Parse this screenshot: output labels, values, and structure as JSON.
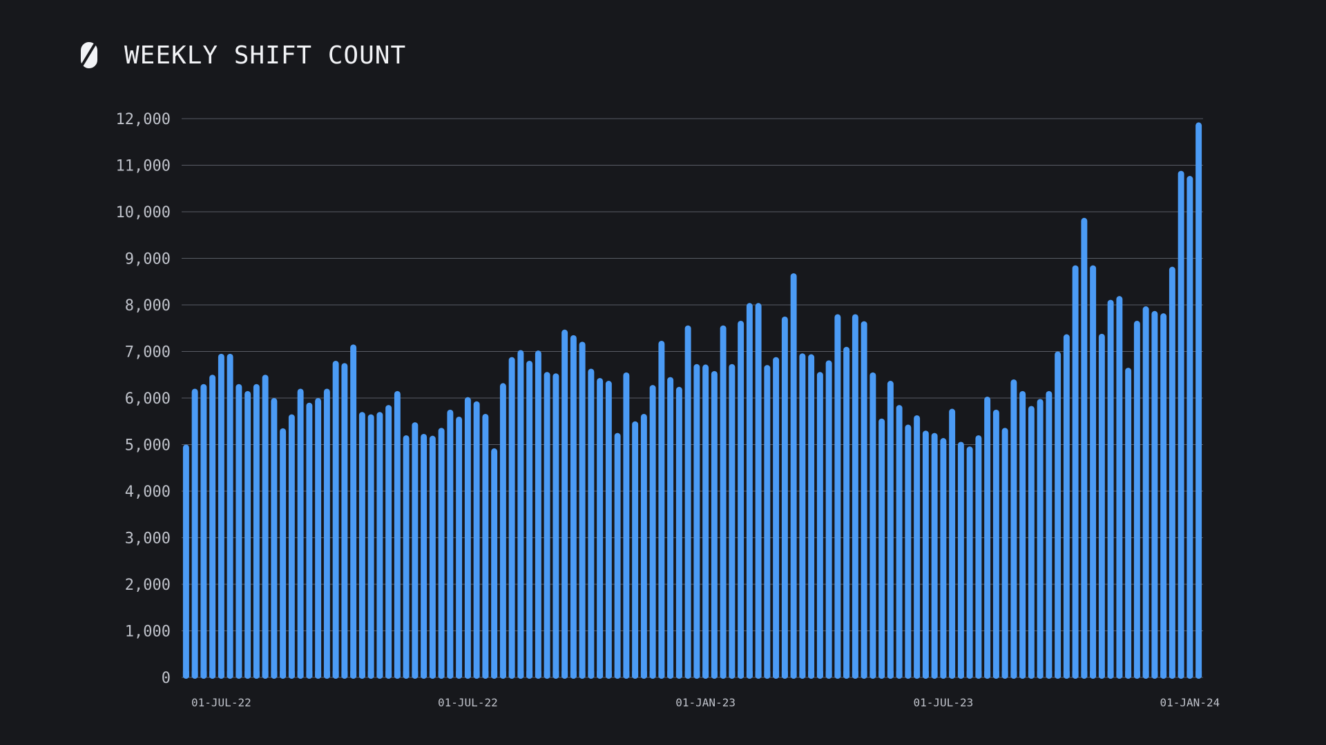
{
  "header": {
    "title": "WEEKLY SHIFT COUNT",
    "logo_icon": "s-slash-logo-icon"
  },
  "colors": {
    "background": "#17181c",
    "bar": "#4b9bf5",
    "grid": "#5a5d66",
    "text": "#bfc2ca"
  },
  "chart_data": {
    "type": "bar",
    "title": "WEEKLY SHIFT COUNT",
    "xlabel": "",
    "ylabel": "",
    "ylim": [
      0,
      12000
    ],
    "y_ticks": [
      0,
      1000,
      2000,
      3000,
      4000,
      5000,
      6000,
      7000,
      8000,
      9000,
      10000,
      11000,
      12000
    ],
    "y_tick_labels": [
      "0",
      "1,000",
      "2,000",
      "3,000",
      "4,000",
      "5,000",
      "6,000",
      "7,000",
      "8,000",
      "9,000",
      "10,000",
      "11,000",
      "12,000"
    ],
    "x_tick_labels": [
      {
        "label": "01-JUL-22",
        "index": 4
      },
      {
        "label": "01-JUL-22",
        "index": 32
      },
      {
        "label": "01-JAN-23",
        "index": 59
      },
      {
        "label": "01-JUL-23",
        "index": 86
      },
      {
        "label": "01-JAN-24",
        "index": 114
      }
    ],
    "grid": true,
    "legend": "none",
    "values": [
      5000,
      6200,
      6300,
      6500,
      6950,
      6950,
      6300,
      6150,
      6300,
      6500,
      6000,
      5350,
      5650,
      6200,
      5900,
      6000,
      6200,
      6800,
      6750,
      7150,
      5700,
      5650,
      5700,
      5850,
      6150,
      5200,
      5480,
      5230,
      5190,
      5360,
      5750,
      5600,
      6020,
      5930,
      5660,
      4920,
      6320,
      6880,
      7030,
      6800,
      7020,
      6560,
      6530,
      7470,
      7350,
      7210,
      6630,
      6430,
      6370,
      5250,
      6550,
      5500,
      5660,
      6280,
      7230,
      6450,
      6240,
      7560,
      6730,
      6720,
      6580,
      7560,
      6730,
      7660,
      8040,
      8040,
      6710,
      6880,
      7750,
      8680,
      6960,
      6940,
      6560,
      6810,
      7800,
      7100,
      7800,
      7650,
      6550,
      5560,
      6370,
      5850,
      5430,
      5630,
      5300,
      5250,
      5140,
      5770,
      5060,
      4960,
      5200,
      6030,
      5750,
      5360,
      6400,
      6150,
      5830,
      5980,
      6150,
      7000,
      7370,
      8850,
      9870,
      8850,
      7380,
      8110,
      8190,
      6650,
      7660,
      7970,
      7870,
      7820,
      8820,
      10880,
      10770,
      11920
    ]
  }
}
